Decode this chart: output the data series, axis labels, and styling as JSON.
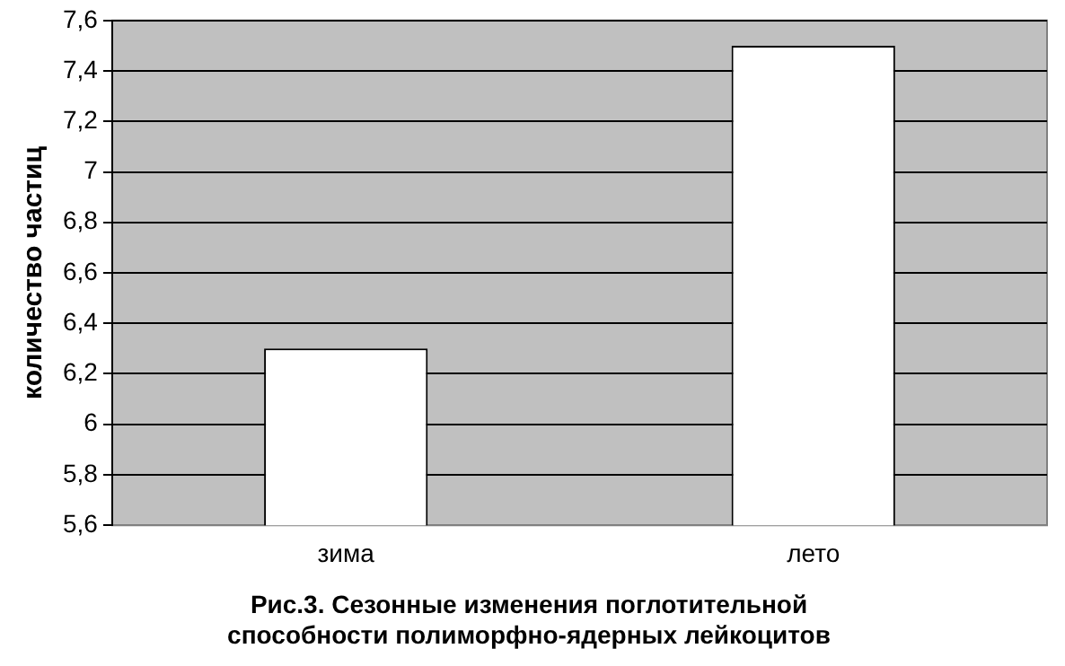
{
  "chart_data": {
    "type": "bar",
    "title": "Рис.3. Сезонные изменения поглотительной способности полиморфно-ядерных лейкоцитов",
    "ylabel": "количество частиц",
    "categories": [
      "зима",
      "лето"
    ],
    "values": [
      6.3,
      7.5
    ],
    "color": "#ffffff",
    "ylim": [
      5.6,
      7.6
    ],
    "yticks": [
      {
        "value": 5.6,
        "label": "5,6"
      },
      {
        "value": 5.8,
        "label": "5,8"
      },
      {
        "value": 6,
        "label": "6"
      },
      {
        "value": 6.2,
        "label": "6,2"
      },
      {
        "value": 6.4,
        "label": "6,4"
      },
      {
        "value": 6.6,
        "label": "6,6"
      },
      {
        "value": 6.8,
        "label": "6,8"
      },
      {
        "value": 7,
        "label": "7"
      },
      {
        "value": 7.2,
        "label": "7,2"
      },
      {
        "value": 7.4,
        "label": "7,4"
      },
      {
        "value": 7.6,
        "label": "7,6"
      }
    ],
    "grid": "y",
    "legend": false
  }
}
